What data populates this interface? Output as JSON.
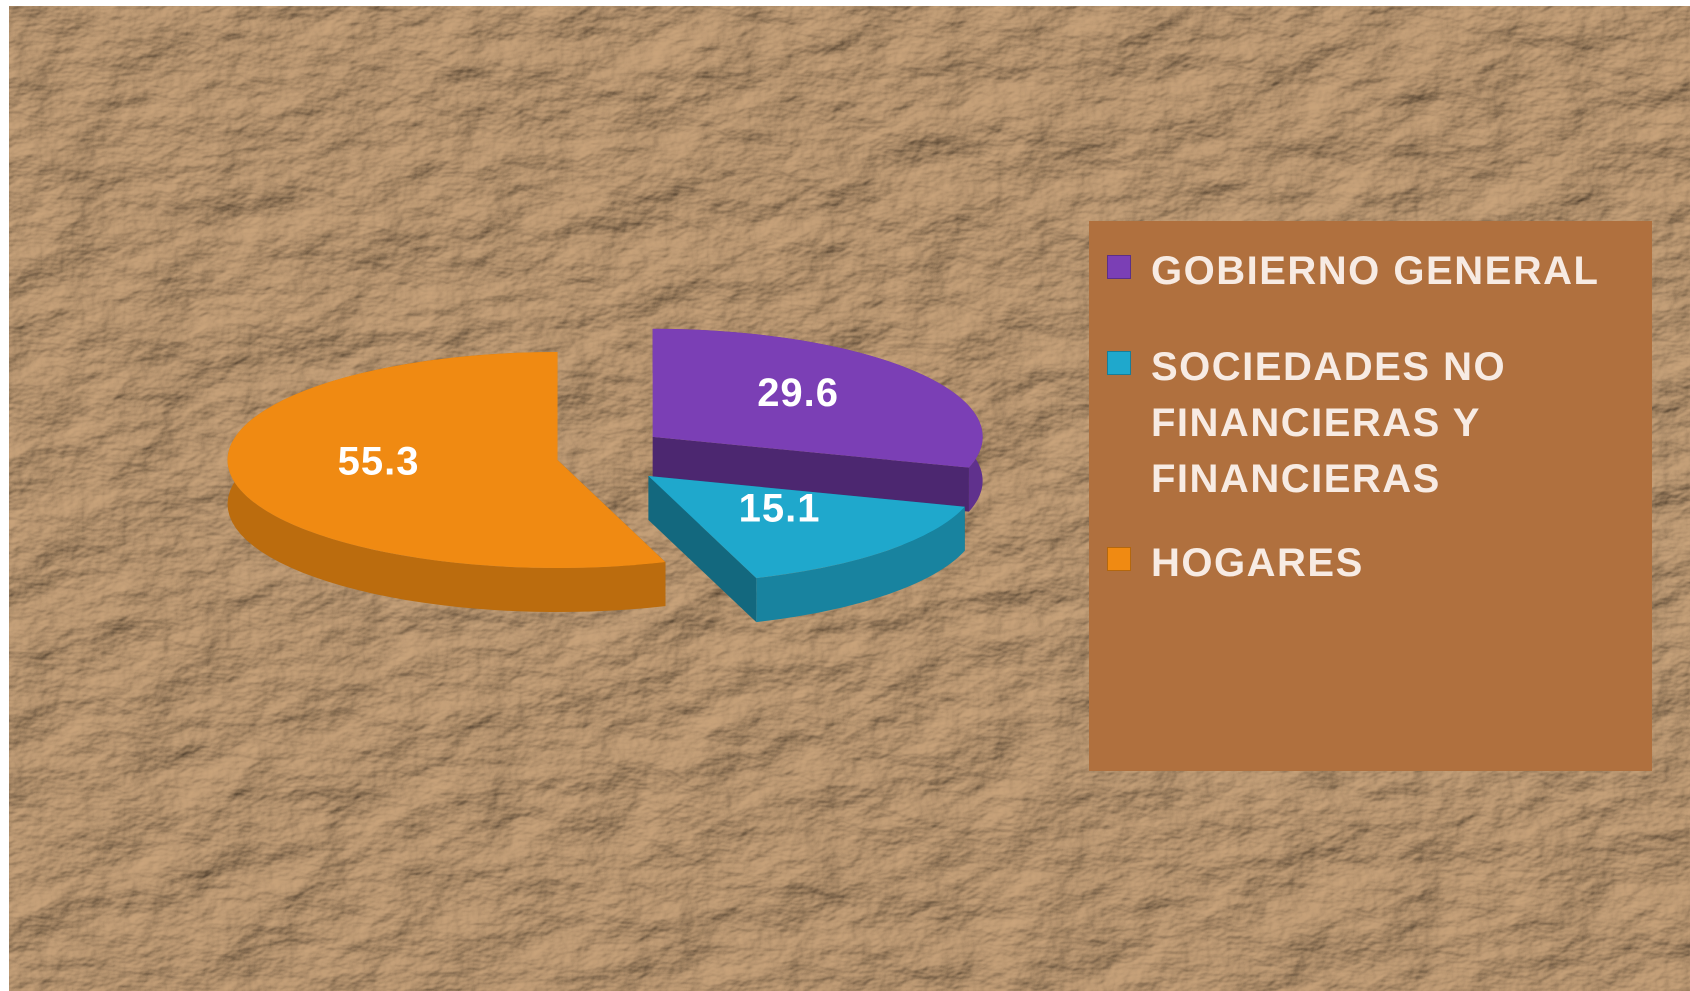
{
  "chart_data": {
    "type": "pie",
    "style": "3d-exploded",
    "categories": [
      "GOBIERNO GENERAL",
      "SOCIEDADES NO FINANCIERAS Y FINANCIERAS",
      "HOGARES"
    ],
    "values": [
      29.6,
      15.1,
      55.3
    ],
    "colors": [
      "#7b3fb5",
      "#1fa8cc",
      "#f08a12"
    ],
    "legend": "right"
  }
}
